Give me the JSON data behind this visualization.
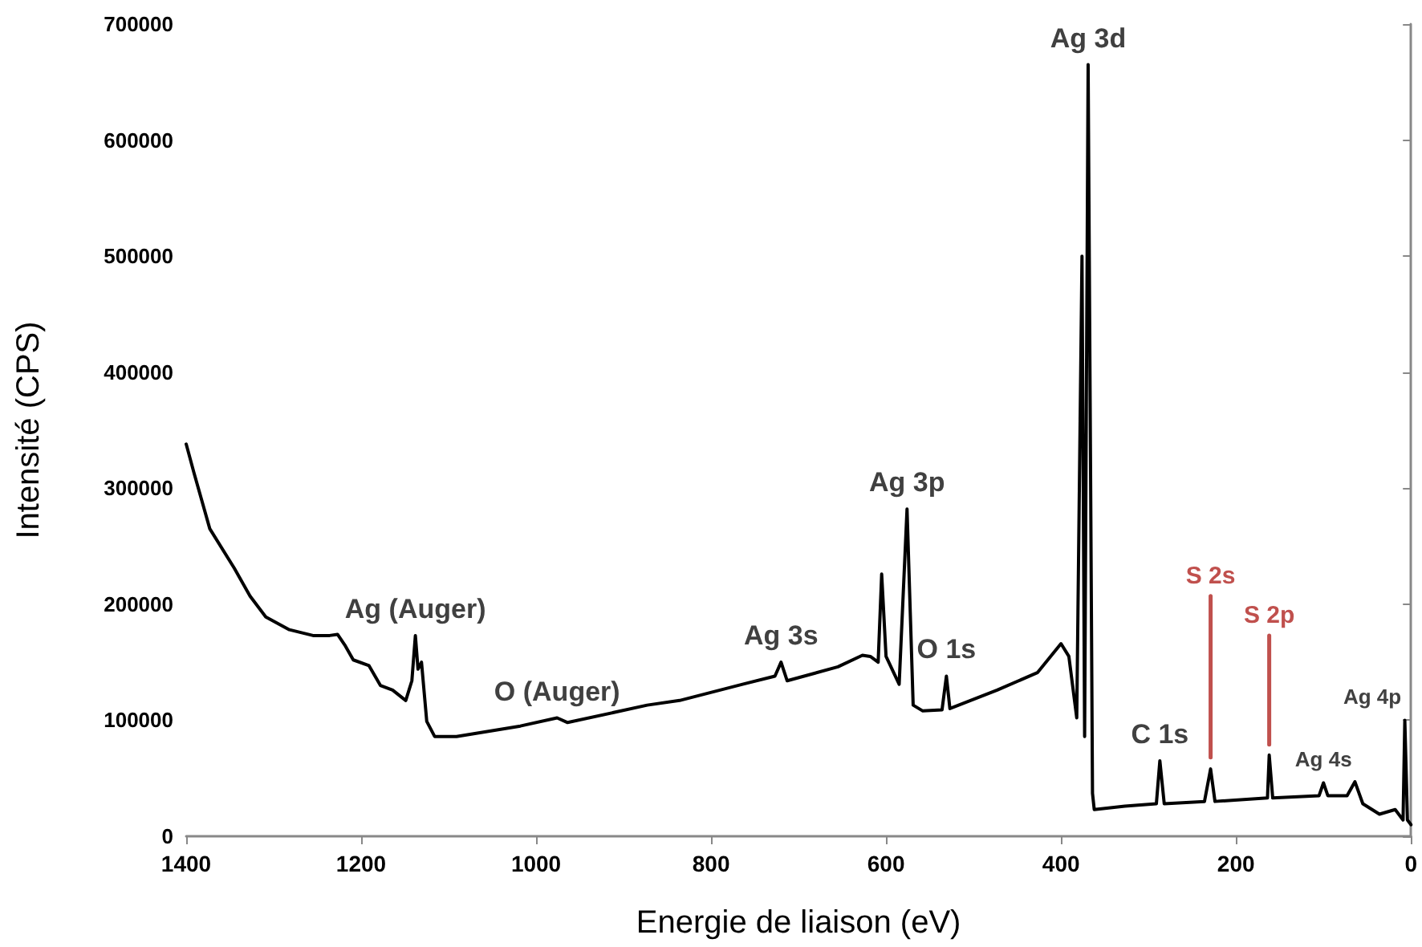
{
  "chart_data": {
    "type": "line",
    "xlabel": "Energie de liaison (eV)",
    "ylabel": "Intensité (CPS)",
    "xlim": [
      1400,
      0
    ],
    "xticks": [
      1400,
      1200,
      1000,
      800,
      600,
      400,
      200,
      0
    ],
    "ylim": [
      0,
      700000
    ],
    "yticks": [
      0,
      100000,
      200000,
      300000,
      400000,
      500000,
      600000,
      700000
    ],
    "grid": false,
    "legend": false,
    "marker": "none",
    "line_style": "solid",
    "series": [
      {
        "color": "#000000",
        "x": [
          1400,
          1391,
          1373,
          1345,
          1327,
          1309,
          1282,
          1255,
          1236,
          1227,
          1218,
          1209,
          1191,
          1178,
          1164,
          1149,
          1142,
          1138,
          1135,
          1131,
          1125,
          1116,
          1091,
          1018,
          976,
          964,
          873,
          836,
          764,
          727,
          720,
          713,
          655,
          627,
          618,
          609,
          605,
          600,
          585,
          576,
          569,
          558,
          536,
          531,
          527,
          473,
          427,
          400,
          391,
          382,
          376,
          373,
          369,
          364,
          362,
          327,
          291,
          287,
          282,
          236,
          229,
          224,
          164,
          162,
          158,
          105,
          100,
          95,
          73,
          64,
          55,
          36,
          18,
          9,
          7,
          4,
          0
        ],
        "values": [
          338000,
          313000,
          265000,
          231000,
          207000,
          189000,
          178000,
          173000,
          173000,
          174000,
          164000,
          152000,
          147000,
          130000,
          126000,
          117000,
          134000,
          173000,
          144000,
          150000,
          99000,
          86000,
          86000,
          95000,
          102000,
          98000,
          113000,
          117000,
          131000,
          138000,
          150000,
          134000,
          146000,
          156000,
          155000,
          150000,
          226000,
          155000,
          131000,
          282000,
          113000,
          108000,
          109000,
          138000,
          110000,
          126000,
          141000,
          166000,
          155000,
          102000,
          500000,
          86000,
          665000,
          37000,
          23000,
          26000,
          28000,
          65000,
          28000,
          30000,
          58000,
          30000,
          33000,
          70000,
          33000,
          35000,
          46000,
          35000,
          35000,
          47000,
          28000,
          19000,
          23000,
          14000,
          100000,
          14000,
          10000
        ]
      },
      {
        "name": "S 2s",
        "color": "#c0504d",
        "x": [
          229,
          229
        ],
        "values": [
          68000,
          207000
        ]
      },
      {
        "name": "S 2p",
        "color": "#c0504d",
        "x": [
          162,
          162
        ],
        "values": [
          79000,
          173000
        ]
      }
    ],
    "annotations": [
      {
        "text": "Ag 3d",
        "x": 369,
        "y": 665000
      },
      {
        "text": "Ag 3p",
        "x": 576,
        "y": 282000
      },
      {
        "text": "Ag 3s",
        "x": 720,
        "y": 150000
      },
      {
        "text": "O 1s",
        "x": 531,
        "y": 138000
      },
      {
        "text": "Ag (Auger)",
        "x": 1138,
        "y": 173000
      },
      {
        "text": "O (Auger)",
        "x": 976,
        "y": 102000
      },
      {
        "text": "C 1s",
        "x": 287,
        "y": 65000
      },
      {
        "text": "Ag 4s",
        "x": 100,
        "y": 46000
      },
      {
        "text": "Ag 4p",
        "x": 7,
        "y": 100000
      }
    ]
  }
}
